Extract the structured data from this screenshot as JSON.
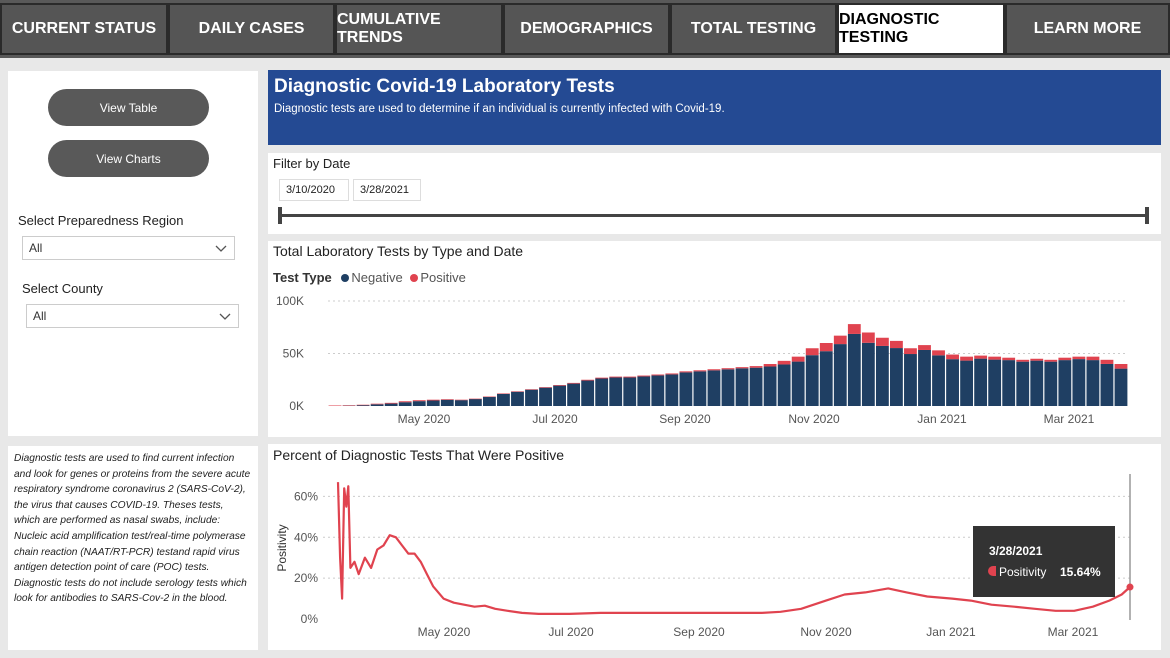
{
  "tabs": [
    {
      "label": "CURRENT STATUS"
    },
    {
      "label": "DAILY CASES"
    },
    {
      "label": "CUMULATIVE TRENDS"
    },
    {
      "label": "DEMOGRAPHICS"
    },
    {
      "label": "TOTAL TESTING"
    },
    {
      "label": "DIAGNOSTIC TESTING",
      "active": true
    },
    {
      "label": "LEARN MORE"
    }
  ],
  "sidebar": {
    "view_table": "View Table",
    "view_charts": "View Charts",
    "region_label": "Select Preparedness Region",
    "region_value": "All",
    "county_label": "Select County",
    "county_value": "All"
  },
  "note": "Diagnostic tests are used to find current infection and look for genes or proteins from the severe acute respiratory syndrome coronavirus 2 (SARS-CoV-2), the virus that causes COVID-19. Theses tests, which are performed as nasal swabs, include: Nucleic acid amplification test/real-time polymerase chain reaction (NAAT/RT-PCR) testand rapid virus antigen detection point of care (POC) tests.  Diagnostic tests do not include serology tests which look for antibodies to SARS-Cov-2 in the blood.",
  "banner": {
    "title": "Diagnostic Covid-19 Laboratory Tests",
    "subtitle": "Diagnostic tests are used to determine if an individual is currently infected with Covid-19."
  },
  "filter": {
    "label": "Filter by Date",
    "start": "3/10/2020",
    "end": "3/28/2021"
  },
  "colors": {
    "negative": "#1f3f63",
    "positive": "#e0434f",
    "banner": "#244a93",
    "tab_bg": "#555555"
  },
  "chart_data": [
    {
      "type": "bar",
      "stacked": true,
      "title": "Total Laboratory Tests by Type and Date",
      "legend_title": "Test Type",
      "x_start": "3/10/2020",
      "x_end": "3/28/2021",
      "x_ticks": [
        "May 2020",
        "Jul 2020",
        "Sep 2020",
        "Nov 2020",
        "Jan 2021",
        "Mar 2021"
      ],
      "y_ticks": [
        "100K",
        "50K",
        "0K"
      ],
      "ylim": [
        0,
        100000
      ],
      "grid": true,
      "series": [
        {
          "name": "Negative",
          "color": "#1f3f63"
        },
        {
          "name": "Positive",
          "color": "#e0434f"
        }
      ],
      "weekly_totals": [
        500,
        700,
        1200,
        2200,
        3000,
        4500,
        5500,
        6000,
        6500,
        6000,
        7000,
        9000,
        12000,
        14000,
        16000,
        18000,
        20000,
        22000,
        25000,
        27000,
        28000,
        28000,
        29000,
        30000,
        31000,
        33000,
        34000,
        35000,
        36000,
        37000,
        38000,
        40000,
        43000,
        47000,
        55000,
        60000,
        67000,
        78000,
        70000,
        65000,
        62000,
        55000,
        58000,
        53000,
        49000,
        47000,
        48000,
        47000,
        46000,
        44000,
        45000,
        44000,
        46000,
        47000,
        47000,
        44000,
        40000
      ],
      "weekly_positive_share": [
        0.62,
        0.45,
        0.33,
        0.26,
        0.23,
        0.2,
        0.16,
        0.13,
        0.09,
        0.07,
        0.05,
        0.04,
        0.04,
        0.03,
        0.03,
        0.03,
        0.03,
        0.03,
        0.03,
        0.03,
        0.03,
        0.03,
        0.03,
        0.03,
        0.03,
        0.03,
        0.03,
        0.03,
        0.03,
        0.03,
        0.04,
        0.06,
        0.08,
        0.1,
        0.12,
        0.13,
        0.12,
        0.12,
        0.14,
        0.12,
        0.11,
        0.1,
        0.08,
        0.09,
        0.09,
        0.08,
        0.06,
        0.06,
        0.05,
        0.04,
        0.04,
        0.04,
        0.05,
        0.05,
        0.07,
        0.09,
        0.11
      ]
    },
    {
      "type": "line",
      "title": "Percent of Diagnostic Tests That Were Positive",
      "ylabel": "Positivity",
      "x_ticks": [
        "May 2020",
        "Jul 2020",
        "Sep 2020",
        "Nov 2020",
        "Jan 2021",
        "Mar 2021"
      ],
      "y_ticks": [
        "60%",
        "40%",
        "20%",
        "0%"
      ],
      "ylim": [
        0,
        0.7
      ],
      "grid": true,
      "points": [
        [
          "3/10/2020",
          0.67
        ],
        [
          "3/11/2020",
          0.3
        ],
        [
          "3/12/2020",
          0.1
        ],
        [
          "3/13/2020",
          0.64
        ],
        [
          "3/14/2020",
          0.55
        ],
        [
          "3/15/2020",
          0.65
        ],
        [
          "3/16/2020",
          0.25
        ],
        [
          "3/18/2020",
          0.28
        ],
        [
          "3/20/2020",
          0.22
        ],
        [
          "3/23/2020",
          0.3
        ],
        [
          "3/26/2020",
          0.25
        ],
        [
          "3/29/2020",
          0.34
        ],
        [
          "4/1/2020",
          0.36
        ],
        [
          "4/4/2020",
          0.41
        ],
        [
          "4/7/2020",
          0.4
        ],
        [
          "4/10/2020",
          0.36
        ],
        [
          "4/13/2020",
          0.32
        ],
        [
          "4/16/2020",
          0.32
        ],
        [
          "4/19/2020",
          0.28
        ],
        [
          "4/22/2020",
          0.22
        ],
        [
          "4/25/2020",
          0.16
        ],
        [
          "4/30/2020",
          0.1
        ],
        [
          "5/5/2020",
          0.08
        ],
        [
          "5/10/2020",
          0.07
        ],
        [
          "5/15/2020",
          0.06
        ],
        [
          "5/20/2020",
          0.065
        ],
        [
          "5/25/2020",
          0.05
        ],
        [
          "5/31/2020",
          0.04
        ],
        [
          "6/7/2020",
          0.03
        ],
        [
          "6/15/2020",
          0.025
        ],
        [
          "6/30/2020",
          0.025
        ],
        [
          "7/15/2020",
          0.03
        ],
        [
          "8/1/2020",
          0.03
        ],
        [
          "8/15/2020",
          0.03
        ],
        [
          "9/1/2020",
          0.03
        ],
        [
          "9/15/2020",
          0.03
        ],
        [
          "10/1/2020",
          0.03
        ],
        [
          "10/10/2020",
          0.035
        ],
        [
          "10/20/2020",
          0.05
        ],
        [
          "11/1/2020",
          0.09
        ],
        [
          "11/10/2020",
          0.12
        ],
        [
          "11/20/2020",
          0.13
        ],
        [
          "12/1/2020",
          0.15
        ],
        [
          "12/10/2020",
          0.13
        ],
        [
          "12/20/2020",
          0.11
        ],
        [
          "1/1/2021",
          0.1
        ],
        [
          "1/10/2021",
          0.09
        ],
        [
          "1/20/2021",
          0.07
        ],
        [
          "1/31/2021",
          0.06
        ],
        [
          "2/10/2021",
          0.05
        ],
        [
          "2/20/2021",
          0.04
        ],
        [
          "3/1/2021",
          0.04
        ],
        [
          "3/10/2021",
          0.06
        ],
        [
          "3/18/2021",
          0.09
        ],
        [
          "3/24/2021",
          0.12
        ],
        [
          "3/28/2021",
          0.1564
        ]
      ],
      "tooltip": {
        "date": "3/28/2021",
        "series": "Positivity",
        "value": "15.64%"
      }
    }
  ]
}
